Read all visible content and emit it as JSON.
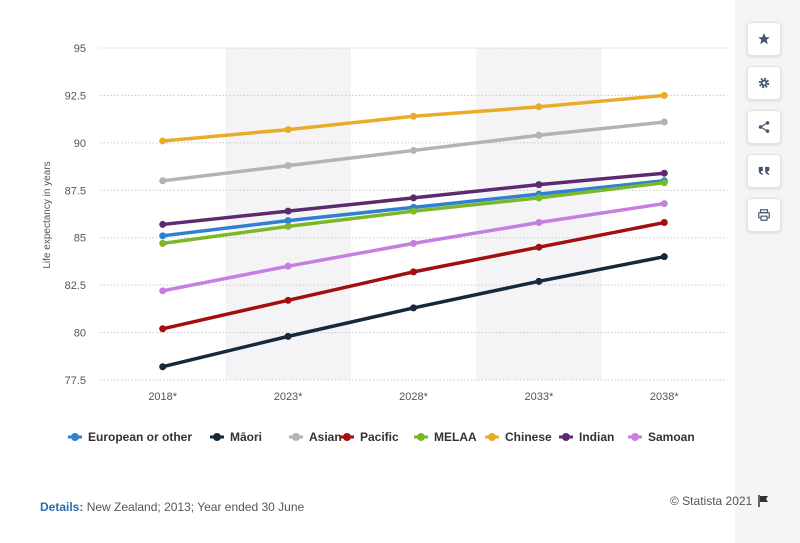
{
  "chart_data": {
    "type": "line",
    "categories": [
      "2018*",
      "2023*",
      "2028*",
      "2033*",
      "2038*"
    ],
    "ylabel": "Life expectancy in years",
    "ylim": [
      77.5,
      95
    ],
    "yticks": [
      77.5,
      80,
      82.5,
      85,
      87.5,
      90,
      92.5,
      95
    ],
    "ytick_labels": [
      "77.5",
      "80",
      "82.5",
      "85",
      "87.5",
      "90",
      "92.5",
      "95"
    ],
    "grid": true,
    "legend_position": "bottom",
    "series": [
      {
        "name": "European or other",
        "color": "#2f80d1",
        "values": [
          85.1,
          85.9,
          86.6,
          87.3,
          88.0
        ]
      },
      {
        "name": "Māori",
        "color": "#15293d",
        "values": [
          78.2,
          79.8,
          81.3,
          82.7,
          84.0
        ]
      },
      {
        "name": "Asian",
        "color": "#b3b3b3",
        "values": [
          88.0,
          88.8,
          89.6,
          90.4,
          91.1
        ]
      },
      {
        "name": "Pacific",
        "color": "#a30f0f",
        "values": [
          80.2,
          81.7,
          83.2,
          84.5,
          85.8
        ]
      },
      {
        "name": "MELAA",
        "color": "#7ab828",
        "values": [
          84.7,
          85.6,
          86.4,
          87.1,
          87.9
        ]
      },
      {
        "name": "Chinese",
        "color": "#e8ab2a",
        "values": [
          90.1,
          90.7,
          91.4,
          91.9,
          92.5
        ]
      },
      {
        "name": "Indian",
        "color": "#5c2a6e",
        "values": [
          85.7,
          86.4,
          87.1,
          87.8,
          88.4
        ]
      },
      {
        "name": "Samoan",
        "color": "#c57fe0",
        "values": [
          82.2,
          83.5,
          84.7,
          85.8,
          86.8
        ]
      }
    ]
  },
  "footer": {
    "details_label": "Details:",
    "details_text": " New Zealand; 2013; Year ended 30 June",
    "copyright": "© Statista 2021"
  },
  "toolbar": {
    "icons": [
      "star-icon",
      "gear-icon",
      "share-icon",
      "quote-icon",
      "print-icon"
    ]
  }
}
